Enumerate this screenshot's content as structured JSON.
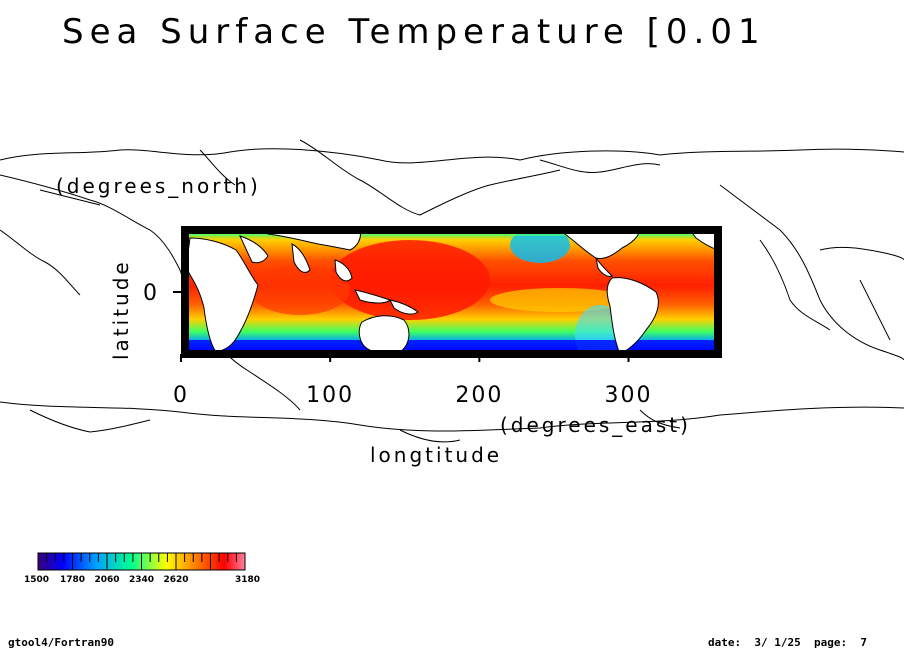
{
  "title": "Sea Surface Temperature [0.01",
  "axes": {
    "x_label": "longtitude",
    "x_units": "(degrees_east)",
    "y_label": "latitude",
    "y_units": "(degrees_north)",
    "x_ticks": [
      "0",
      "100",
      "200",
      "300"
    ],
    "x_tick_values": [
      0,
      100,
      200,
      300
    ],
    "y_ticks": [
      "0"
    ],
    "y_tick_values": [
      0
    ],
    "x_range": [
      0,
      360
    ],
    "y_range": [
      -90,
      90
    ]
  },
  "colorbar": {
    "labels": [
      "1500",
      "1780",
      "2060",
      "2340",
      "2620",
      "3180"
    ],
    "range": [
      1500,
      3180
    ],
    "colors": [
      "#3a007a",
      "#0000ff",
      "#00a0ff",
      "#00ff90",
      "#ffff00",
      "#ff8000",
      "#ff0000",
      "#ff80a0"
    ]
  },
  "footer": {
    "left": "gtool4/Fortran90",
    "right": "date:  3/ 1/25  page:  7"
  },
  "colors": {
    "warm": "#ff2a00",
    "hot": "#ff0000",
    "mid": "#ffd000",
    "cool": "#00ff80",
    "cold": "#0040ff",
    "frame": "#000000"
  }
}
